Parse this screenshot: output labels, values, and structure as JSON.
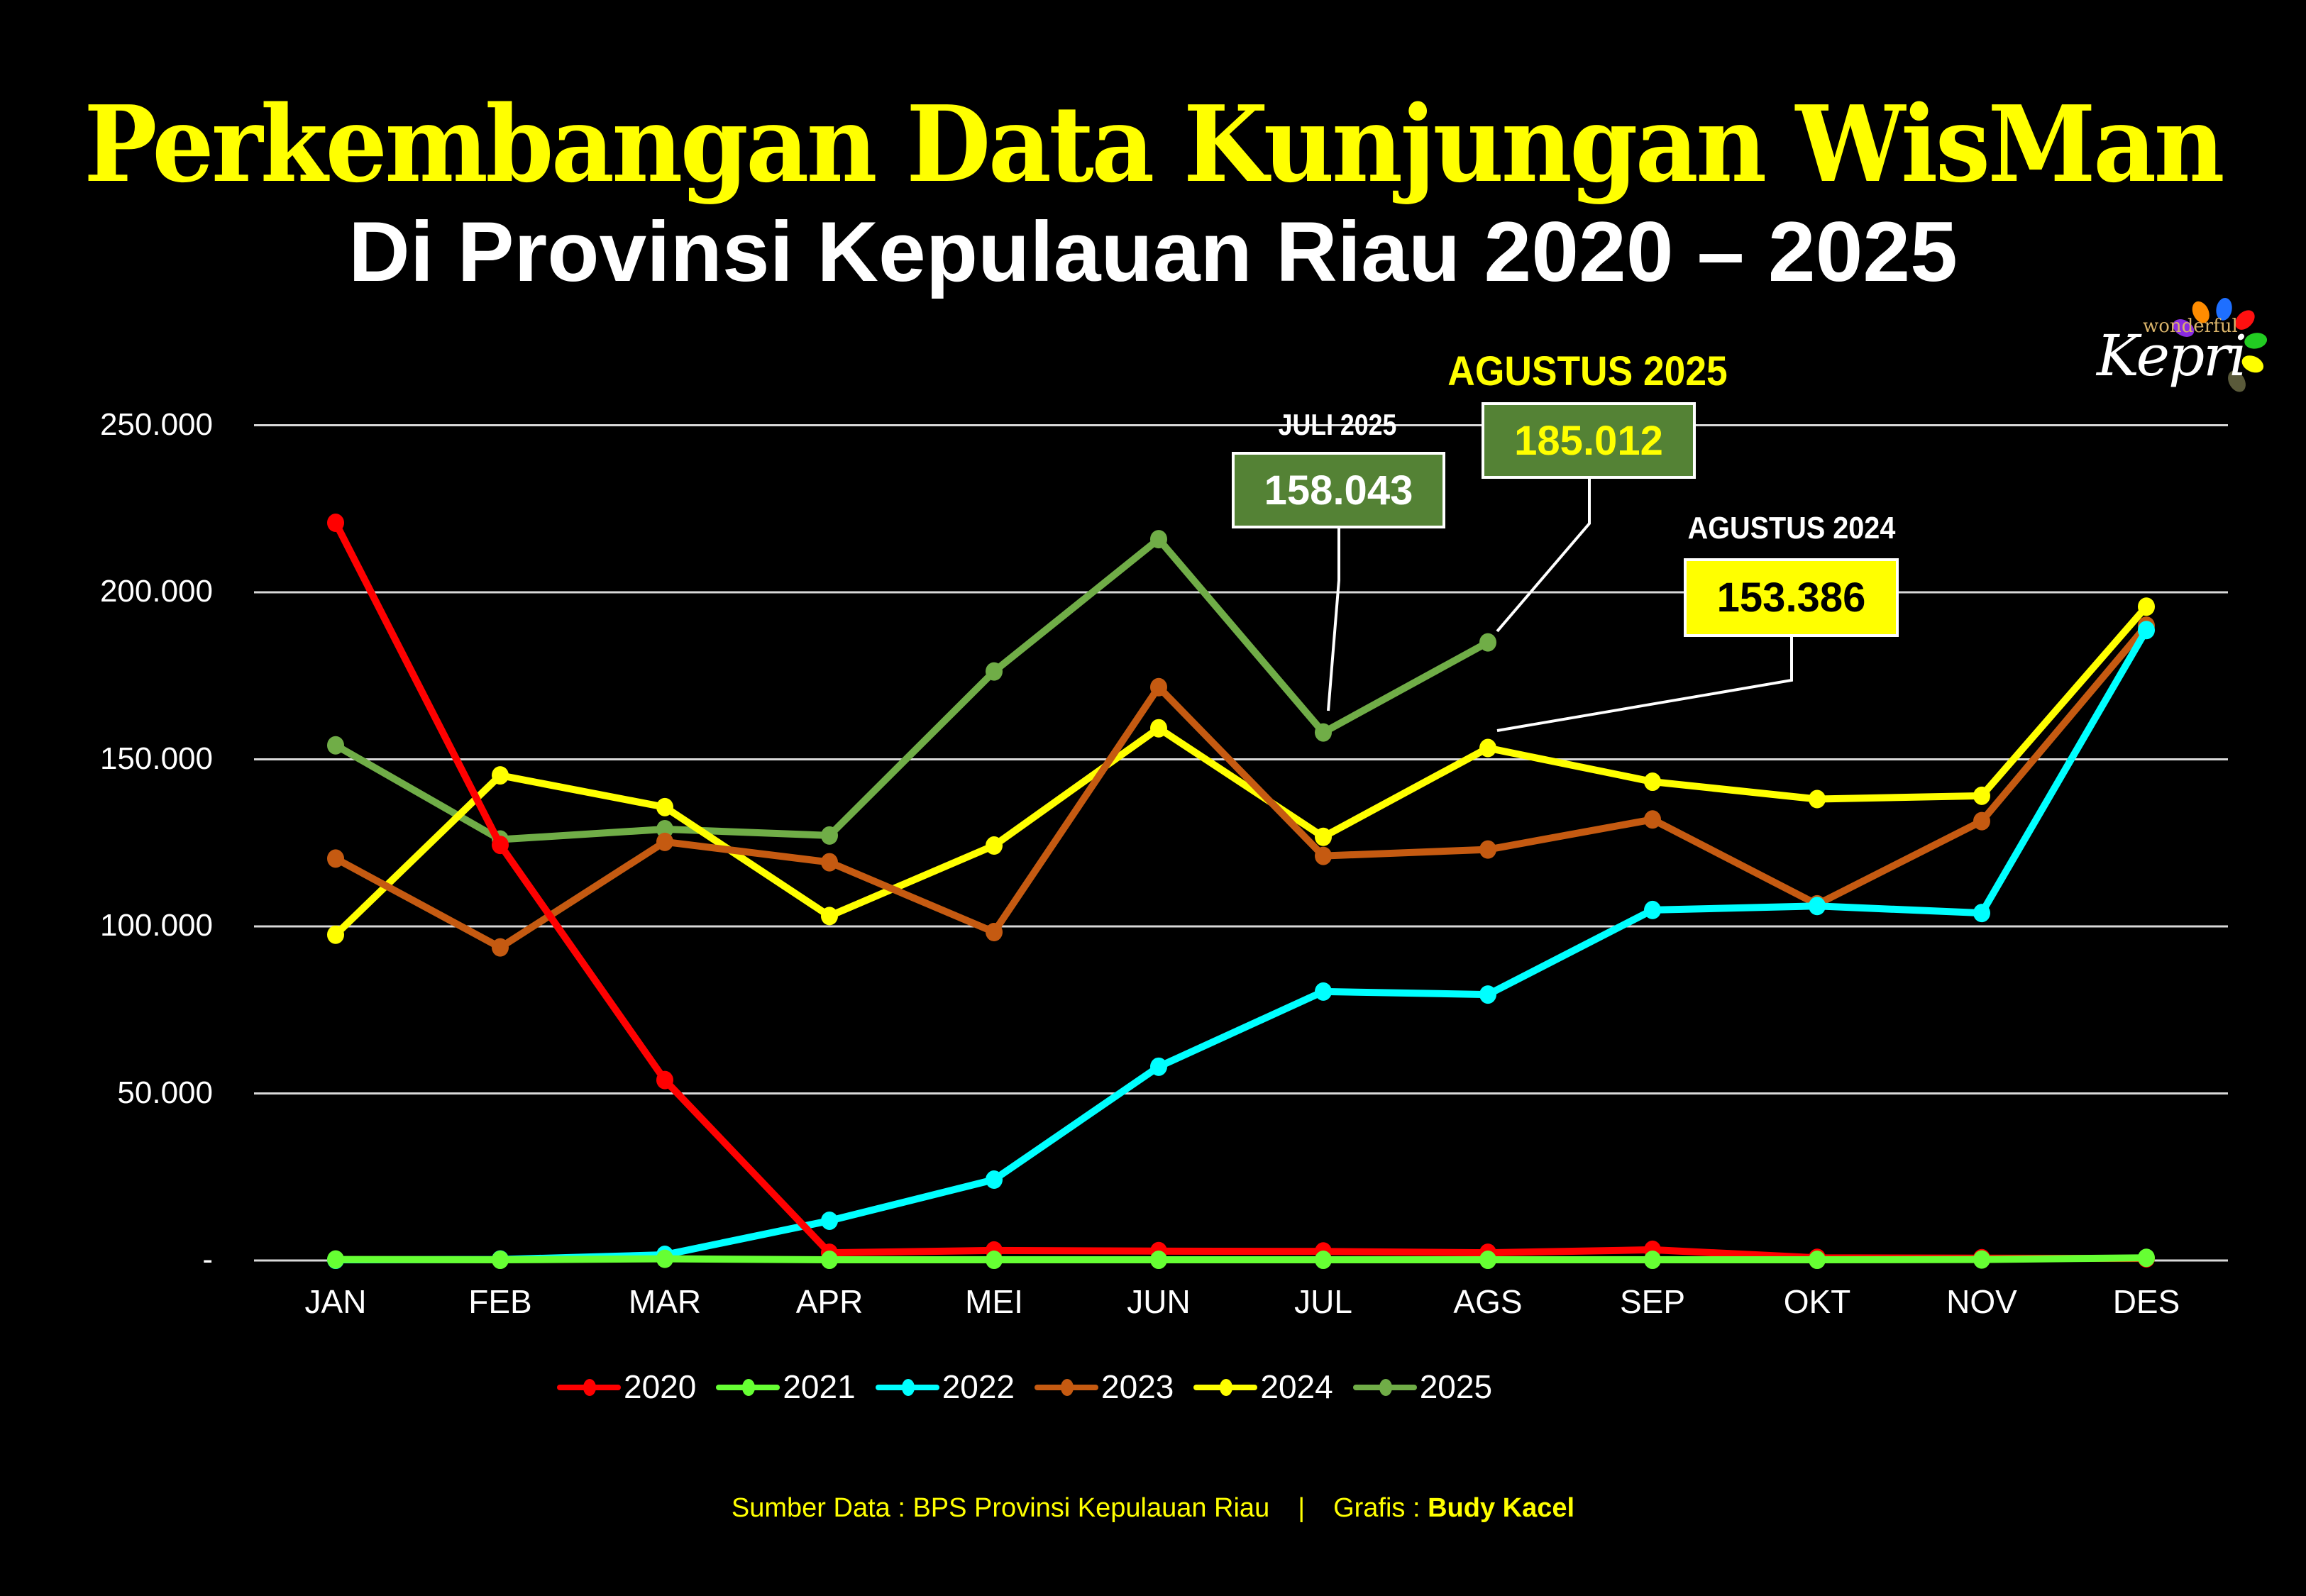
{
  "header": {
    "title": "Perkembangan Data Kunjungan WisMan",
    "subtitle": "Di Provinsi Kepulauan Riau 2020 – 2025"
  },
  "logo": {
    "small_text": "wonderful",
    "brand_text": "Kepri",
    "petal_colors": [
      "#8a2be2",
      "#ff8c00",
      "#1e6fff",
      "#ff1010",
      "#22cc22",
      "#ffff00",
      "#5a5a3a"
    ]
  },
  "colors": {
    "background": "#000000",
    "grid": "#d9d9d9",
    "2020": "#ff0000",
    "2021": "#66ff33",
    "2022": "#00ffff",
    "2023": "#c55a11",
    "2024": "#ffff00",
    "2025": "#70ad47",
    "callout_green": "#548235",
    "callout_yellow": "#ffff00"
  },
  "callouts": [
    {
      "id": "juli-2025",
      "label": "JULI 2025",
      "value": "158.043",
      "label_color": "#ffffff",
      "value_color": "#ffffff",
      "box_color": "#548235"
    },
    {
      "id": "agustus-2025",
      "label": "AGUSTUS 2025",
      "value": "185.012",
      "label_color": "#ffff00",
      "value_color": "#ffff00",
      "box_color": "#548235"
    },
    {
      "id": "agustus-2024",
      "label": "AGUSTUS 2024",
      "value": "153.386",
      "label_color": "#ffffff",
      "value_color": "#000000",
      "box_color": "#ffff00"
    }
  ],
  "footer": {
    "source_label": "Sumber Data : BPS Provinsi Kepulauan Riau",
    "separator": "|",
    "credit_label": "Grafis : ",
    "credit_name": "Budy Kacel"
  },
  "chart_data": {
    "type": "line",
    "title": "Perkembangan Data Kunjungan WisMan",
    "subtitle": "Di Provinsi Kepulauan Riau 2020 – 2025",
    "xlabel": "",
    "ylabel": "",
    "categories": [
      "JAN",
      "FEB",
      "MAR",
      "APR",
      "MEI",
      "JUN",
      "JUL",
      "AGS",
      "SEP",
      "OKT",
      "NOV",
      "DES"
    ],
    "y_ticks": [
      0,
      50000,
      100000,
      150000,
      200000,
      250000
    ],
    "y_tick_labels": [
      "-",
      "50.000",
      "100.000",
      "150.000",
      "200.000",
      "250.000"
    ],
    "ylim": [
      0,
      250000
    ],
    "grid": true,
    "legend_position": "bottom",
    "series": [
      {
        "name": "2020",
        "color": "#ff0000",
        "values": [
          220800,
          124400,
          54000,
          2300,
          3000,
          2800,
          2700,
          2300,
          3200,
          800,
          700,
          600
        ]
      },
      {
        "name": "2021",
        "color": "#66ff33",
        "values": [
          300,
          200,
          500,
          200,
          200,
          200,
          200,
          200,
          200,
          200,
          300,
          800
        ]
      },
      {
        "name": "2022",
        "color": "#00ffff",
        "values": [
          200,
          300,
          1700,
          11900,
          24200,
          58000,
          80500,
          79600,
          104900,
          106100,
          104000,
          188700
        ]
      },
      {
        "name": "2023",
        "color": "#c55a11",
        "values": [
          120300,
          93700,
          125300,
          119200,
          98300,
          171600,
          121100,
          123000,
          132000,
          106600,
          131500,
          190000
        ]
      },
      {
        "name": "2024",
        "color": "#ffff00",
        "values": [
          97500,
          145200,
          135700,
          103100,
          124200,
          159300,
          126800,
          153386,
          143300,
          138100,
          139100,
          195700
        ]
      },
      {
        "name": "2025",
        "color": "#70ad47",
        "values": [
          154200,
          126000,
          129100,
          127200,
          176300,
          215900,
          158043,
          185012
        ]
      }
    ],
    "annotations": [
      {
        "text": "JULI 2025: 158.043",
        "series": "2025",
        "category": "JUL"
      },
      {
        "text": "AGUSTUS 2025: 185.012",
        "series": "2025",
        "category": "AGS"
      },
      {
        "text": "AGUSTUS 2024: 153.386",
        "series": "2024",
        "category": "AGS"
      }
    ]
  }
}
